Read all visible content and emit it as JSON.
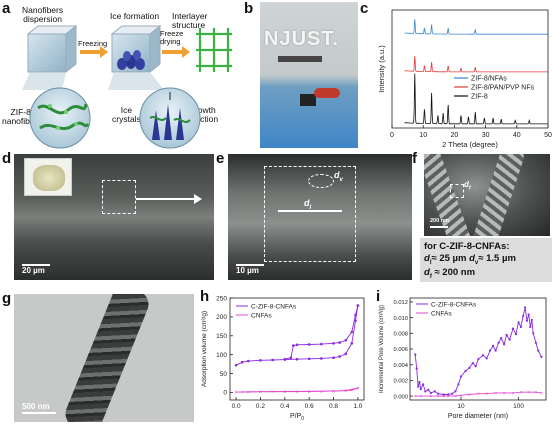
{
  "panel_a": {
    "label": "a",
    "stage1": "Nanofibers\ndispersion",
    "stage2": "Ice formation",
    "stage3": "Interlayer structure",
    "arrow1": "Freezing",
    "arrow2": "Freeze\ndrying",
    "zif_label": "ZIF-8/\nnanofibers",
    "ice_label": "Ice\ncrystals",
    "growth_label": "Growth\ndirection"
  },
  "panel_b": {
    "label": "b",
    "logo_text": "NJUST."
  },
  "panel_c": {
    "label": "c",
    "chart_data": {
      "type": "line",
      "xlabel": "2 Theta (degree)",
      "ylabel": "Intensity (a.u.)",
      "xlim": [
        0,
        50
      ],
      "xticks": [
        0,
        10,
        20,
        30,
        40,
        50
      ],
      "series": [
        {
          "name": "ZIF-8/NFAs",
          "color": "#3b86d6",
          "offset": 0.78,
          "peaks": [
            [
              7.3,
              0.12
            ],
            [
              10.4,
              0.05
            ],
            [
              12.7,
              0.08
            ],
            [
              18.0,
              0.05
            ],
            [
              26.7,
              0.04
            ]
          ]
        },
        {
          "name": "ZIF-8/PAN/PVP NFs",
          "color": "#e03a3a",
          "offset": 0.46,
          "peaks": [
            [
              7.3,
              0.13
            ],
            [
              10.4,
              0.05
            ],
            [
              12.7,
              0.08
            ],
            [
              18.0,
              0.05
            ],
            [
              22.1,
              0.03
            ],
            [
              26.7,
              0.04
            ]
          ]
        },
        {
          "name": "ZIF-8",
          "color": "#111111",
          "offset": 0.02,
          "peaks": [
            [
              7.3,
              0.42
            ],
            [
              10.4,
              0.12
            ],
            [
              12.7,
              0.26
            ],
            [
              14.7,
              0.07
            ],
            [
              16.4,
              0.09
            ],
            [
              18.0,
              0.16
            ],
            [
              22.1,
              0.07
            ],
            [
              24.5,
              0.06
            ],
            [
              26.7,
              0.1
            ],
            [
              29.6,
              0.05
            ],
            [
              32.4,
              0.05
            ],
            [
              35.0,
              0.04
            ],
            [
              39.5,
              0.03
            ],
            [
              44.0,
              0.03
            ]
          ]
        }
      ]
    }
  },
  "panel_d": {
    "label": "d",
    "scale": "20 µm"
  },
  "panel_e": {
    "label": "e",
    "scale": "10 µm",
    "dv": "d",
    "dv_sub": "v",
    "dl": "d",
    "dl_sub": "l"
  },
  "panel_f": {
    "label": "f",
    "scale": "200 nm",
    "df": "d",
    "df_sub": "f",
    "info_title": "for C-ZIF-8-CNFAs:",
    "info_line1a": "d",
    "info_line1a_sub": "l",
    "info_line1b": "≈ 25 µm ",
    "info_line1c": "d",
    "info_line1c_sub": "v",
    "info_line1d": "≈ 1.5 µm",
    "info_line2a": "d",
    "info_line2a_sub": "f",
    "info_line2b": "≈ 200 nm"
  },
  "panel_g": {
    "label": "g",
    "scale": "500 nm"
  },
  "panel_h": {
    "label": "h",
    "chart_data": {
      "type": "line",
      "xlabel": "P/P",
      "xlabel_sub": "0",
      "ylabel": "Adsorption volume (cm³/g)",
      "xlim": [
        -0.05,
        1.05
      ],
      "ylim": [
        -20,
        250
      ],
      "xticks": [
        0.0,
        0.2,
        0.4,
        0.6,
        0.8,
        1.0
      ],
      "yticks": [
        0,
        50,
        100,
        150,
        200,
        250
      ],
      "series": [
        {
          "name": "C-ZIF-8-CNFAs",
          "color": "#8a2be2",
          "adsorption": [
            [
              0.0,
              72
            ],
            [
              0.05,
              80
            ],
            [
              0.1,
              83
            ],
            [
              0.2,
              85
            ],
            [
              0.3,
              86
            ],
            [
              0.4,
              87
            ],
            [
              0.5,
              88
            ],
            [
              0.6,
              89
            ],
            [
              0.7,
              90
            ],
            [
              0.8,
              92
            ],
            [
              0.85,
              95
            ],
            [
              0.9,
              102
            ],
            [
              0.95,
              130
            ],
            [
              0.98,
              190
            ],
            [
              1.0,
              230
            ]
          ],
          "desorption": [
            [
              1.0,
              230
            ],
            [
              0.98,
              205
            ],
            [
              0.95,
              160
            ],
            [
              0.9,
              138
            ],
            [
              0.85,
              132
            ],
            [
              0.8,
              130
            ],
            [
              0.7,
              128
            ],
            [
              0.6,
              127
            ],
            [
              0.5,
              126
            ],
            [
              0.47,
              124
            ],
            [
              0.45,
              92
            ],
            [
              0.4,
              88
            ]
          ]
        },
        {
          "name": "CNFAs",
          "color": "#e048d0",
          "adsorption": [
            [
              0.0,
              1
            ],
            [
              0.1,
              1.5
            ],
            [
              0.2,
              2
            ],
            [
              0.3,
              2
            ],
            [
              0.4,
              2
            ],
            [
              0.5,
              2
            ],
            [
              0.6,
              2.5
            ],
            [
              0.7,
              3
            ],
            [
              0.8,
              3.5
            ],
            [
              0.9,
              4.5
            ],
            [
              0.95,
              6
            ],
            [
              1.0,
              12
            ]
          ],
          "desorption": [
            [
              1.0,
              12
            ],
            [
              0.9,
              5
            ],
            [
              0.8,
              4
            ],
            [
              0.6,
              3
            ],
            [
              0.4,
              2.5
            ],
            [
              0.2,
              2
            ],
            [
              0.05,
              1.5
            ]
          ]
        }
      ]
    }
  },
  "panel_i": {
    "label": "i",
    "chart_data": {
      "type": "line",
      "xlabel": "Pore diameter (nm)",
      "ylabel": "Incremental Pore Volume (cm³/g)",
      "xscale": "log",
      "xlim": [
        1.3,
        300
      ],
      "ylim": [
        -0.0005,
        0.0125
      ],
      "xticks": [
        10,
        100
      ],
      "yticks": [
        0.0,
        0.002,
        0.004,
        0.006,
        0.008,
        0.01,
        0.012
      ],
      "ytick_labels": [
        "0.000",
        "0.002",
        "0.004",
        "0.006",
        "0.008",
        "0.010",
        "0.012"
      ],
      "series": [
        {
          "name": "C-ZIF-8-CNFAs",
          "color": "#8a2be2",
          "points": [
            [
              1.6,
              0.0053
            ],
            [
              1.7,
              0.0035
            ],
            [
              1.8,
              0.0012
            ],
            [
              1.9,
              0.0018
            ],
            [
              2.0,
              0.0009
            ],
            [
              2.2,
              0.0015
            ],
            [
              2.4,
              0.0006
            ],
            [
              2.7,
              0.0008
            ],
            [
              3.0,
              0.0004
            ],
            [
              3.5,
              0.0006
            ],
            [
              4,
              0.0003
            ],
            [
              5,
              0.0002
            ],
            [
              6,
              0.0002
            ],
            [
              7,
              0.0003
            ],
            [
              8,
              0.0006
            ],
            [
              9,
              0.0015
            ],
            [
              10,
              0.0025
            ],
            [
              12,
              0.0032
            ],
            [
              14,
              0.0036
            ],
            [
              16,
              0.0042
            ],
            [
              18,
              0.0038
            ],
            [
              20,
              0.0047
            ],
            [
              24,
              0.0052
            ],
            [
              28,
              0.0048
            ],
            [
              32,
              0.0058
            ],
            [
              36,
              0.0064
            ],
            [
              40,
              0.0058
            ],
            [
              45,
              0.0068
            ],
            [
              50,
              0.0074
            ],
            [
              56,
              0.0066
            ],
            [
              62,
              0.0078
            ],
            [
              70,
              0.0072
            ],
            [
              80,
              0.0086
            ],
            [
              90,
              0.0079
            ],
            [
              100,
              0.0094
            ],
            [
              110,
              0.0088
            ],
            [
              120,
              0.0102
            ],
            [
              130,
              0.0113
            ],
            [
              140,
              0.0096
            ],
            [
              150,
              0.0104
            ],
            [
              160,
              0.0088
            ],
            [
              170,
              0.0097
            ],
            [
              180,
              0.008
            ],
            [
              200,
              0.0068
            ],
            [
              220,
              0.0058
            ],
            [
              250,
              0.005
            ]
          ]
        },
        {
          "name": "CNFAs",
          "color": "#e048d0",
          "points": [
            [
              1.6,
              0.0
            ],
            [
              2,
              0.0
            ],
            [
              3,
              0.0
            ],
            [
              4,
              0.0
            ],
            [
              5,
              0.0
            ],
            [
              6,
              0.0
            ],
            [
              8,
              0.0
            ],
            [
              10,
              0.0001
            ],
            [
              14,
              0.0002
            ],
            [
              20,
              0.0003
            ],
            [
              28,
              0.0003
            ],
            [
              40,
              0.0004
            ],
            [
              56,
              0.0004
            ],
            [
              80,
              0.0004
            ],
            [
              110,
              0.0005
            ],
            [
              150,
              0.0005
            ],
            [
              200,
              0.0005
            ],
            [
              250,
              0.0004
            ]
          ]
        }
      ]
    }
  }
}
